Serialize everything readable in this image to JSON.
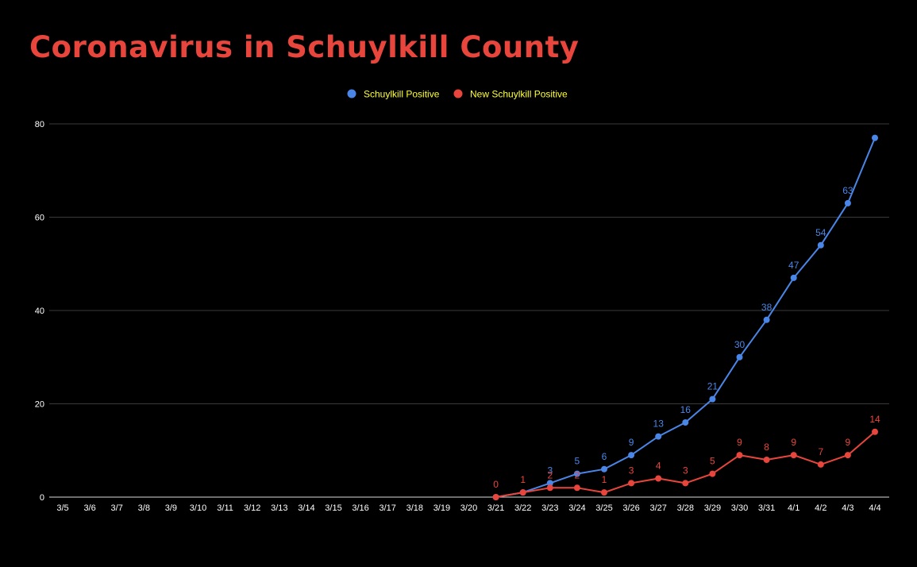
{
  "chart_data": {
    "type": "line",
    "title": "Coronavirus in Schuylkill County",
    "xlabel": "",
    "ylabel": "",
    "categories": [
      "3/5",
      "3/6",
      "3/7",
      "3/8",
      "3/9",
      "3/10",
      "3/11",
      "3/12",
      "3/13",
      "3/14",
      "3/15",
      "3/16",
      "3/17",
      "3/18",
      "3/19",
      "3/20",
      "3/21",
      "3/22",
      "3/23",
      "3/24",
      "3/25",
      "3/26",
      "3/27",
      "3/28",
      "3/29",
      "3/30",
      "3/31",
      "4/1",
      "4/2",
      "4/3",
      "4/4"
    ],
    "ylim": [
      0,
      80
    ],
    "yticks": [
      0,
      20,
      40,
      60,
      80
    ],
    "grid": true,
    "legend_position": "top-center",
    "series": [
      {
        "name": "Schuylkill Positive",
        "color": "#4a86e8",
        "values": [
          null,
          null,
          null,
          null,
          null,
          null,
          null,
          null,
          null,
          null,
          null,
          null,
          null,
          null,
          null,
          null,
          0,
          1,
          3,
          5,
          6,
          9,
          13,
          16,
          21,
          30,
          38,
          47,
          54,
          63,
          77
        ],
        "labels": [
          null,
          null,
          null,
          null,
          null,
          null,
          null,
          null,
          null,
          null,
          null,
          null,
          null,
          null,
          null,
          null,
          null,
          null,
          "3",
          "5",
          "6",
          "9",
          "13",
          "16",
          "21",
          "30",
          "38",
          "47",
          "54",
          "63",
          null
        ]
      },
      {
        "name": "New Schuylkill Positive",
        "color": "#e8453c",
        "values": [
          null,
          null,
          null,
          null,
          null,
          null,
          null,
          null,
          null,
          null,
          null,
          null,
          null,
          null,
          null,
          null,
          0,
          1,
          2,
          2,
          1,
          3,
          4,
          3,
          5,
          9,
          8,
          9,
          7,
          9,
          14
        ],
        "labels": [
          null,
          null,
          null,
          null,
          null,
          null,
          null,
          null,
          null,
          null,
          null,
          null,
          null,
          null,
          null,
          null,
          "0",
          "1",
          "2",
          "2",
          "1",
          "3",
          "4",
          "3",
          "5",
          "9",
          "8",
          "9",
          "7",
          "9",
          "14"
        ]
      }
    ]
  }
}
